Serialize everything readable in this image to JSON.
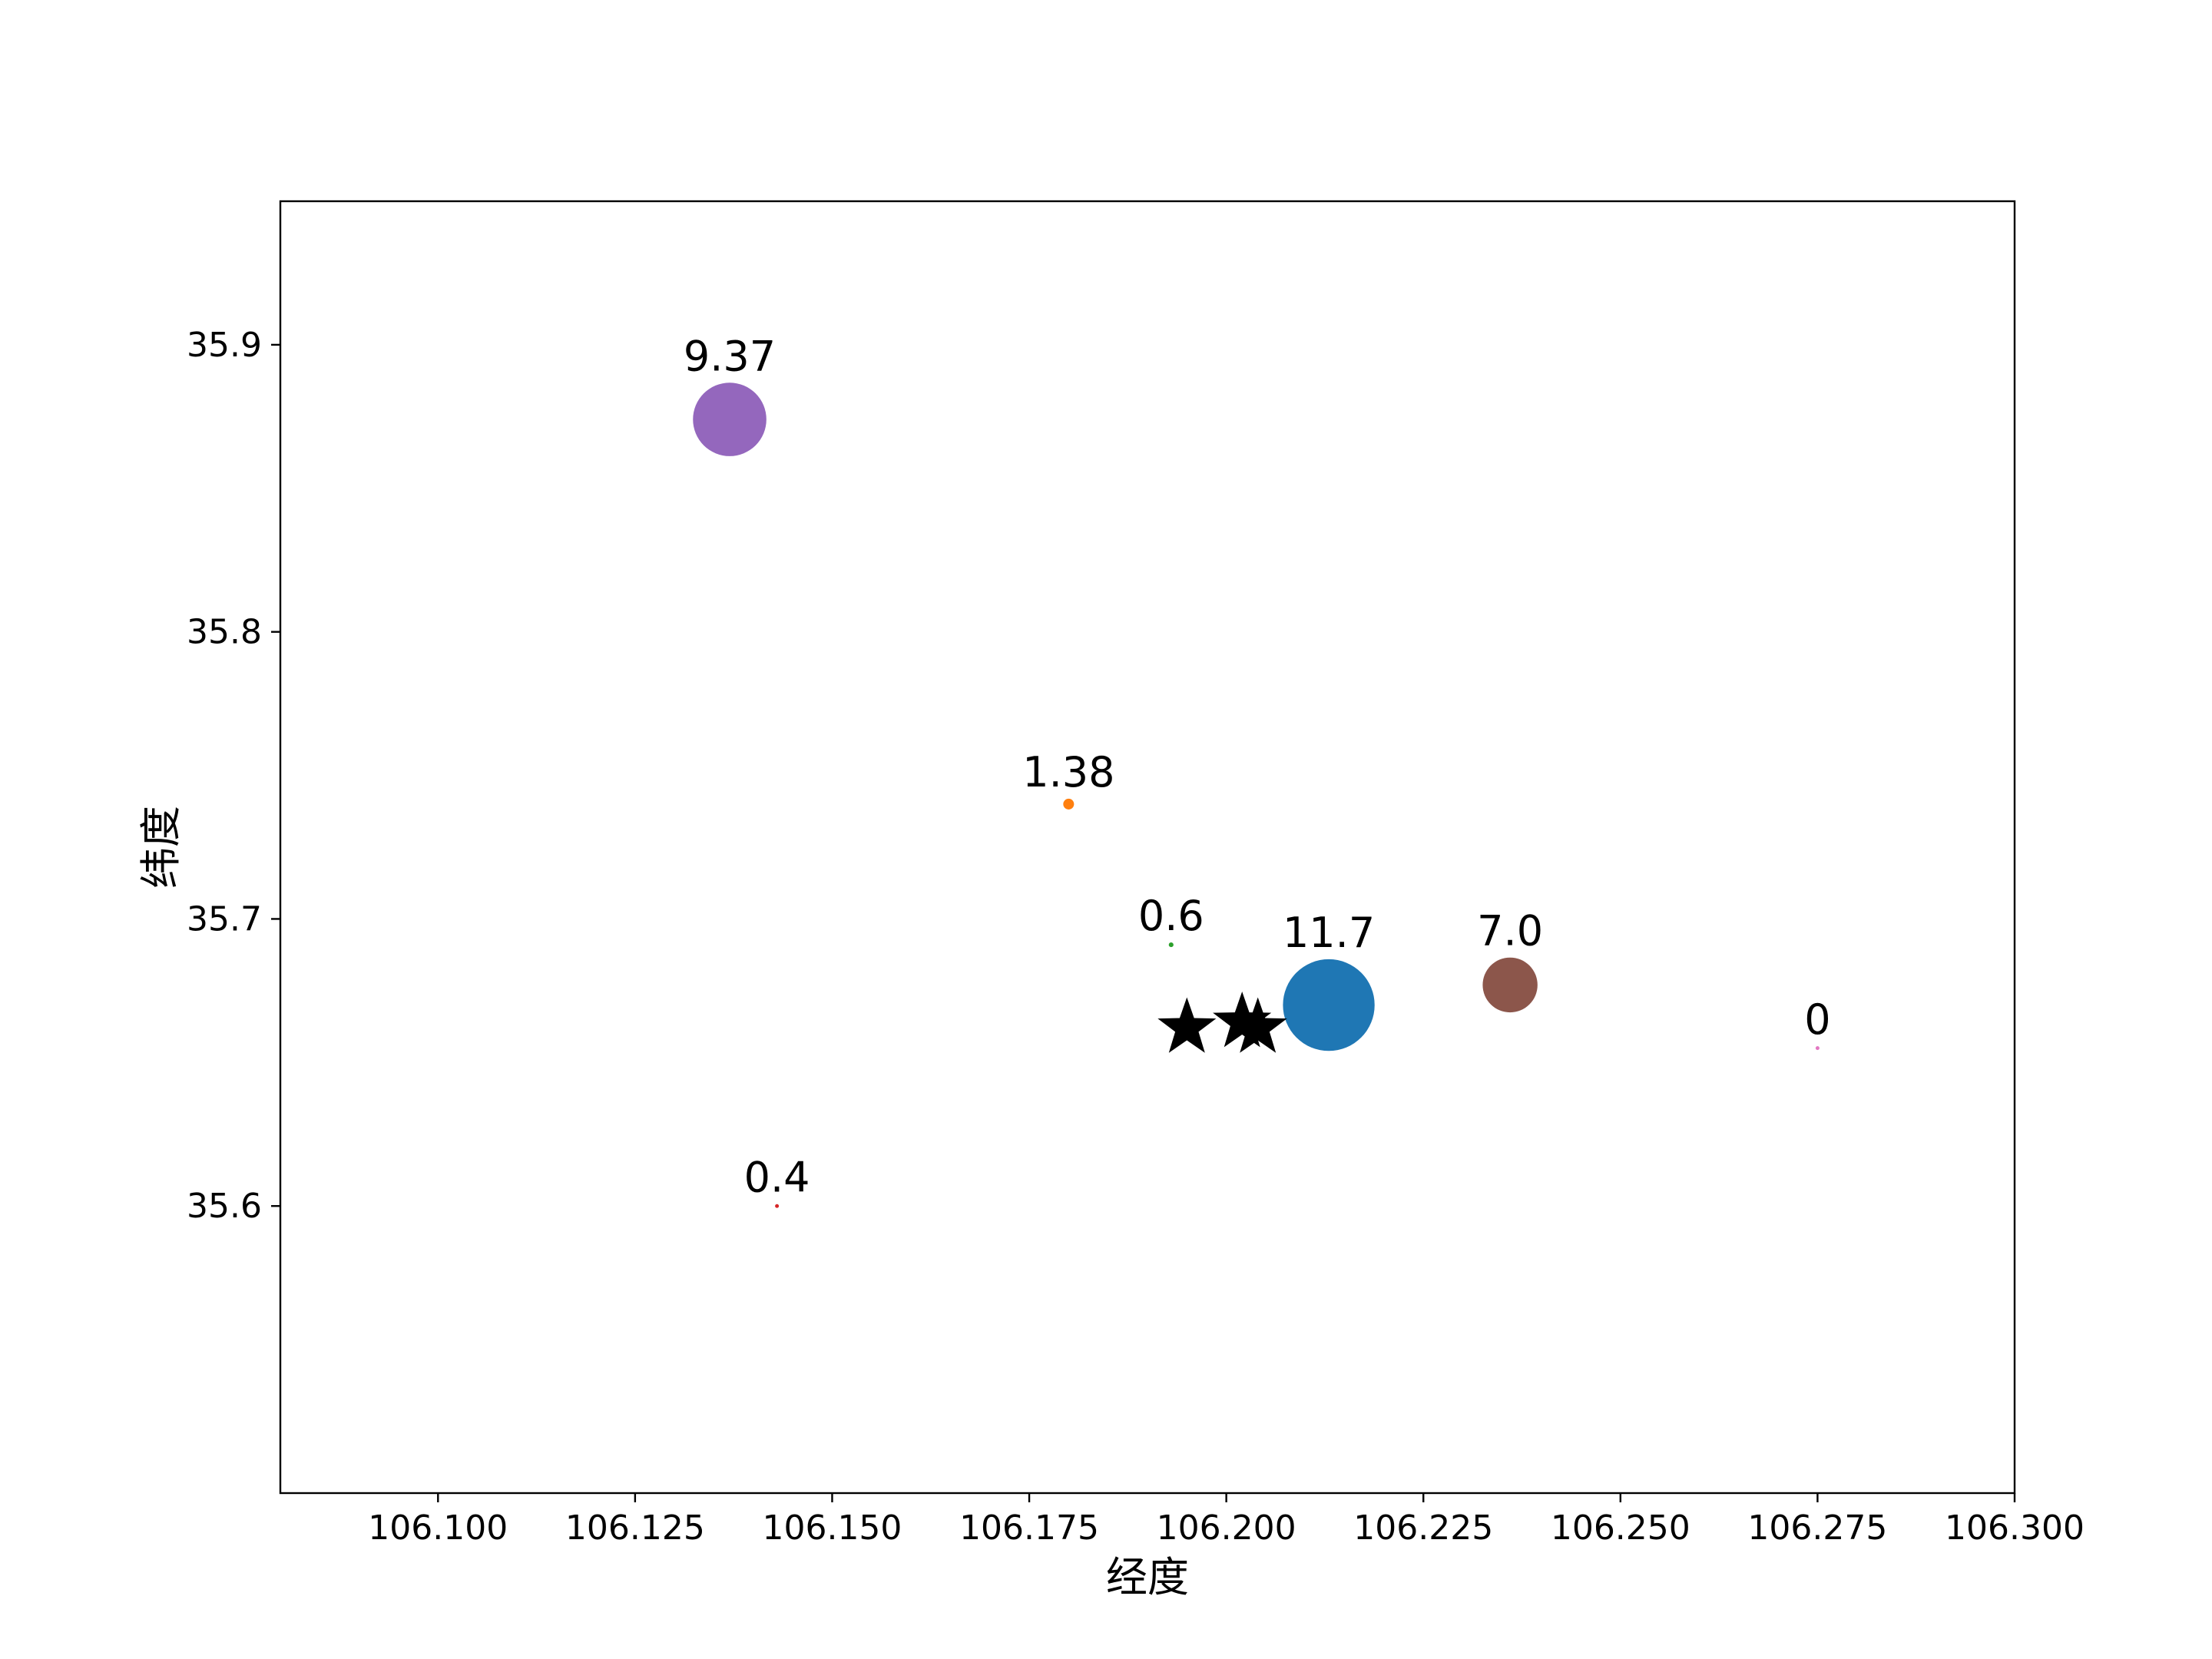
{
  "chart_data": {
    "type": "scatter",
    "xlabel": "经度",
    "ylabel": "纬度",
    "xlim": [
      106.08,
      106.3
    ],
    "ylim": [
      35.5,
      35.95
    ],
    "x_ticks": [
      106.1,
      106.125,
      106.15,
      106.175,
      106.2,
      106.225,
      106.25,
      106.275,
      106.3
    ],
    "x_tick_labels": [
      "106.100",
      "106.125",
      "106.150",
      "106.175",
      "106.200",
      "106.225",
      "106.250",
      "106.275",
      "106.300"
    ],
    "y_ticks": [
      35.6,
      35.7,
      35.8,
      35.9
    ],
    "y_tick_labels": [
      "35.6",
      "35.7",
      "35.8",
      "35.9"
    ],
    "grid": false,
    "points": [
      {
        "x": 106.213,
        "y": 35.67,
        "value": 11.7,
        "label": "11.7",
        "color": "#1f77b4"
      },
      {
        "x": 106.18,
        "y": 35.74,
        "value": 1.38,
        "label": "1.38",
        "color": "#ff7f0e"
      },
      {
        "x": 106.193,
        "y": 35.691,
        "value": 0.6,
        "label": "0.6",
        "color": "#2ca02c"
      },
      {
        "x": 106.143,
        "y": 35.6,
        "value": 0.4,
        "label": "0.4",
        "color": "#d62728"
      },
      {
        "x": 106.137,
        "y": 35.874,
        "value": 9.37,
        "label": "9.37",
        "color": "#9467bd"
      },
      {
        "x": 106.236,
        "y": 35.677,
        "value": 7.0,
        "label": "7.0",
        "color": "#8c564b"
      },
      {
        "x": 106.275,
        "y": 35.655,
        "value": 0,
        "label": "0",
        "color": "#e377c2"
      }
    ],
    "star_markers": [
      {
        "x": 106.195,
        "y": 35.662,
        "color": "#000000"
      },
      {
        "x": 106.202,
        "y": 35.664,
        "color": "#000000"
      },
      {
        "x": 106.204,
        "y": 35.662,
        "color": "#000000"
      }
    ]
  }
}
